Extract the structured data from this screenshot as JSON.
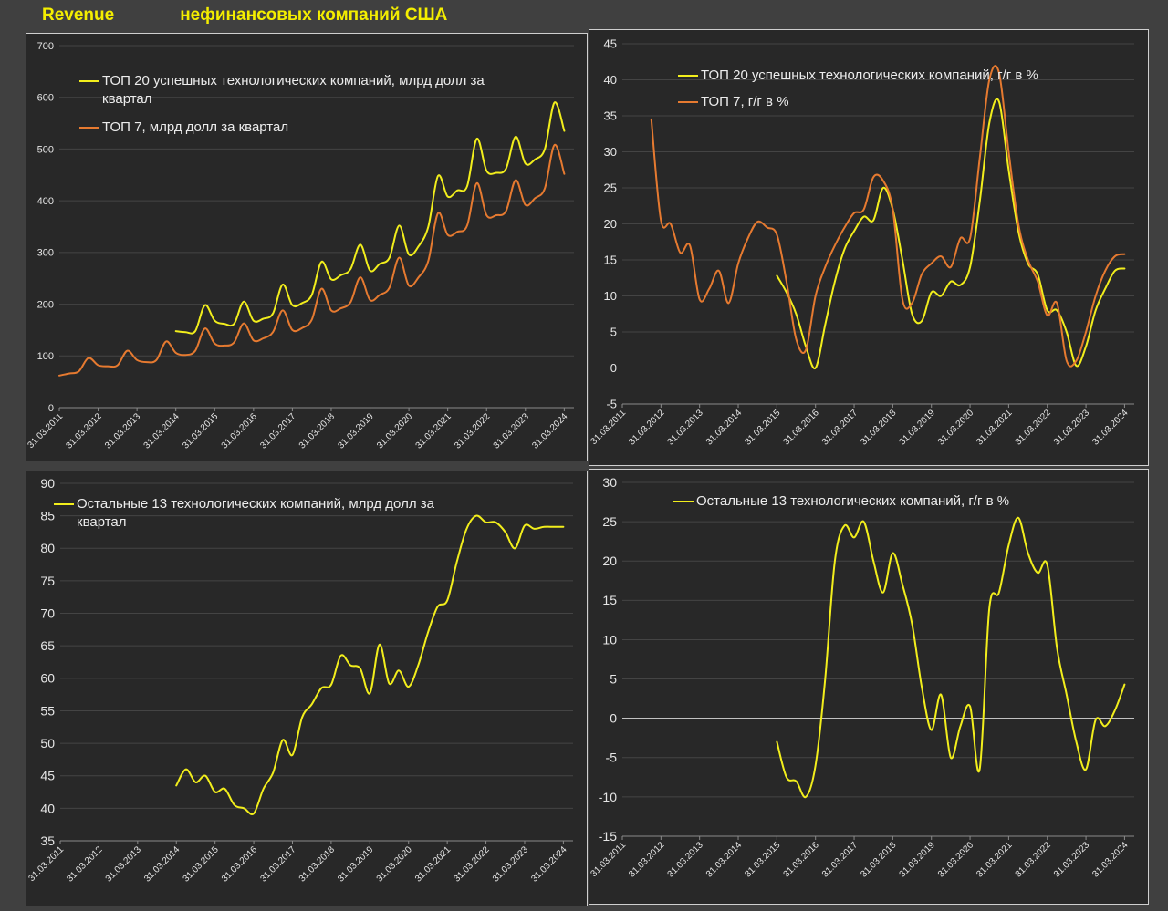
{
  "title": {
    "part1": "Revenue",
    "part2": "нефинансовых компаний США"
  },
  "colors": {
    "yellow": "#f2ee1c",
    "orange": "#e67a30",
    "zero_line": "#d9d9d9",
    "grid": "#444444"
  },
  "chart_data": [
    {
      "id": "top-left",
      "type": "line",
      "title": "",
      "xlabel": "",
      "ylabel": "",
      "ylim": [
        0,
        700
      ],
      "yticks": [
        0,
        100,
        200,
        300,
        400,
        500,
        600,
        700
      ],
      "x_tick_labels": [
        "31.03.2011",
        "31.03.2012",
        "31.03.2013",
        "31.03.2014",
        "31.03.2015",
        "31.03.2016",
        "31.03.2017",
        "31.03.2018",
        "31.03.2019",
        "31.03.2020",
        "31.03.2021",
        "31.03.2022",
        "31.03.2023",
        "31.03.2024"
      ],
      "x_start": 2011.25,
      "x_end": 2024.5,
      "grid": true,
      "legend_position": "top-left",
      "series": [
        {
          "name": "ТОП 20 успешных технологических компаний, млрд долл за квартал",
          "color": "yellow",
          "x": [
            2014.25,
            2014.5,
            2014.75,
            2015,
            2015.25,
            2015.5,
            2015.75,
            2016,
            2016.25,
            2016.5,
            2016.75,
            2017,
            2017.25,
            2017.5,
            2017.75,
            2018,
            2018.25,
            2018.5,
            2018.75,
            2019,
            2019.25,
            2019.5,
            2019.75,
            2020,
            2020.25,
            2020.5,
            2020.75,
            2021,
            2021.25,
            2021.5,
            2021.75,
            2022,
            2022.25,
            2022.5,
            2022.75,
            2023,
            2023.25,
            2023.5,
            2023.75,
            2024,
            2024.25
          ],
          "y": [
            148,
            146,
            148,
            198,
            168,
            162,
            162,
            205,
            168,
            172,
            182,
            238,
            198,
            202,
            218,
            282,
            248,
            256,
            268,
            315,
            265,
            278,
            290,
            352,
            296,
            312,
            350,
            448,
            408,
            420,
            428,
            520,
            458,
            454,
            462,
            524,
            472,
            480,
            500,
            590,
            535
          ]
        },
        {
          "name": "ТОП 7, млрд долл за квартал",
          "color": "orange",
          "x": [
            2011.25,
            2011.5,
            2011.75,
            2012,
            2012.25,
            2012.5,
            2012.75,
            2013,
            2013.25,
            2013.5,
            2013.75,
            2014,
            2014.25,
            2014.5,
            2014.75,
            2015,
            2015.25,
            2015.5,
            2015.75,
            2016,
            2016.25,
            2016.5,
            2016.75,
            2017,
            2017.25,
            2017.5,
            2017.75,
            2018,
            2018.25,
            2018.5,
            2018.75,
            2019,
            2019.25,
            2019.5,
            2019.75,
            2020,
            2020.25,
            2020.5,
            2020.75,
            2021,
            2021.25,
            2021.5,
            2021.75,
            2022,
            2022.25,
            2022.5,
            2022.75,
            2023,
            2023.25,
            2023.5,
            2023.75,
            2024,
            2024.25
          ],
          "y": [
            62,
            66,
            70,
            96,
            82,
            80,
            82,
            110,
            92,
            88,
            92,
            128,
            106,
            102,
            110,
            153,
            124,
            120,
            126,
            163,
            130,
            134,
            146,
            188,
            150,
            154,
            170,
            230,
            188,
            192,
            204,
            252,
            208,
            218,
            232,
            290,
            236,
            252,
            284,
            376,
            334,
            340,
            352,
            434,
            372,
            372,
            380,
            440,
            392,
            405,
            424,
            508,
            452
          ]
        }
      ]
    },
    {
      "id": "top-right",
      "type": "line",
      "title": "",
      "xlabel": "",
      "ylabel": "",
      "ylim": [
        -5,
        45
      ],
      "yticks": [
        -5,
        0,
        5,
        10,
        15,
        20,
        25,
        30,
        35,
        40,
        45
      ],
      "x_tick_labels": [
        "31.03.2011",
        "31.03.2012",
        "31.03.2013",
        "31.03.2014",
        "31.03.2015",
        "31.03.2016",
        "31.03.2017",
        "31.03.2018",
        "31.03.2019",
        "31.03.2020",
        "31.03.2021",
        "31.03.2022",
        "31.03.2023",
        "31.03.2024"
      ],
      "x_start": 2011.25,
      "x_end": 2024.5,
      "grid": true,
      "legend_position": "top-center",
      "series": [
        {
          "name": "ТОП 20 успешных технологических компаний, г/г в %",
          "color": "yellow",
          "x": [
            2015.25,
            2015.5,
            2015.75,
            2016,
            2016.25,
            2016.5,
            2016.75,
            2017,
            2017.25,
            2017.5,
            2017.75,
            2018,
            2018.25,
            2018.5,
            2018.75,
            2019,
            2019.25,
            2019.5,
            2019.75,
            2020,
            2020.25,
            2020.5,
            2020.75,
            2021,
            2021.25,
            2021.5,
            2021.75,
            2022,
            2022.25,
            2022.5,
            2022.75,
            2023,
            2023.25,
            2023.5,
            2023.75,
            2024,
            2024.25
          ],
          "y": [
            12.8,
            10.5,
            7.5,
            3,
            0,
            6,
            12,
            16.5,
            19,
            21,
            20.5,
            25,
            22,
            15,
            7.5,
            6.5,
            10.5,
            10,
            12,
            11.5,
            14,
            23,
            34,
            37,
            27.5,
            19,
            14.5,
            13,
            8,
            8,
            5,
            0.3,
            3,
            8,
            11,
            13.5,
            13.8
          ]
        },
        {
          "name": "ТОП 7, г/г в %",
          "color": "orange",
          "x": [
            2012,
            2012.25,
            2012.5,
            2012.75,
            2013,
            2013.25,
            2013.5,
            2013.75,
            2014,
            2014.25,
            2014.5,
            2014.75,
            2015,
            2015.25,
            2015.5,
            2015.75,
            2016,
            2016.25,
            2016.5,
            2016.75,
            2017,
            2017.25,
            2017.5,
            2017.75,
            2018,
            2018.25,
            2018.5,
            2018.75,
            2019,
            2019.25,
            2019.5,
            2019.75,
            2020,
            2020.25,
            2020.5,
            2020.75,
            2021,
            2021.25,
            2021.5,
            2021.75,
            2022,
            2022.25,
            2022.5,
            2022.75,
            2023,
            2023.25,
            2023.5,
            2023.75,
            2024,
            2024.25
          ],
          "y": [
            34.5,
            20.5,
            20,
            16,
            17,
            9.5,
            11,
            13.5,
            9,
            14.5,
            18,
            20.3,
            19.5,
            18.5,
            12,
            4,
            2.5,
            10,
            14,
            17,
            19.5,
            21.5,
            22,
            26.5,
            26,
            22,
            9.5,
            9,
            13,
            14.5,
            15.5,
            14,
            18,
            18,
            29,
            40,
            41,
            30,
            20,
            15,
            12,
            7.3,
            9,
            1,
            1,
            5,
            10,
            13.5,
            15.5,
            15.8
          ]
        }
      ]
    },
    {
      "id": "bottom-left",
      "type": "line",
      "title": "",
      "xlabel": "",
      "ylabel": "",
      "ylim": [
        35,
        90
      ],
      "yticks": [
        35,
        40,
        45,
        50,
        55,
        60,
        65,
        70,
        75,
        80,
        85,
        90
      ],
      "x_tick_labels": [
        "31.03.2011",
        "31.03.2012",
        "31.03.2013",
        "31.03.2014",
        "31.03.2015",
        "31.03.2016",
        "31.03.2017",
        "31.03.2018",
        "31.03.2019",
        "31.03.2020",
        "31.03.2021",
        "31.03.2022",
        "31.03.2023",
        "31.03.2024"
      ],
      "x_start": 2011.25,
      "x_end": 2024.5,
      "grid": true,
      "legend_position": "top-left",
      "series": [
        {
          "name": "Остальные 13 технологических компаний, млрд долл за квартал",
          "color": "yellow",
          "x": [
            2014.25,
            2014.5,
            2014.75,
            2015,
            2015.25,
            2015.5,
            2015.75,
            2016,
            2016.25,
            2016.5,
            2016.75,
            2017,
            2017.25,
            2017.5,
            2017.75,
            2018,
            2018.25,
            2018.5,
            2018.75,
            2019,
            2019.25,
            2019.5,
            2019.75,
            2020,
            2020.25,
            2020.5,
            2020.75,
            2021,
            2021.25,
            2021.5,
            2021.75,
            2022,
            2022.25,
            2022.5,
            2022.75,
            2023,
            2023.25,
            2023.5,
            2023.75,
            2024,
            2024.25
          ],
          "y": [
            43.5,
            46,
            44,
            45,
            42.5,
            43,
            40.5,
            40,
            39.2,
            43,
            45.5,
            50.5,
            48.2,
            54,
            56,
            58.5,
            59,
            63.5,
            62,
            61.5,
            57.7,
            65.2,
            59.2,
            61.2,
            58.7,
            62,
            67,
            71,
            72,
            78,
            83,
            85,
            84,
            84,
            82.5,
            80,
            83.5,
            83,
            83.3,
            83.3,
            83.3
          ]
        }
      ]
    },
    {
      "id": "bottom-right",
      "type": "line",
      "title": "",
      "xlabel": "",
      "ylabel": "",
      "ylim": [
        -15,
        30
      ],
      "yticks": [
        -15,
        -10,
        -5,
        0,
        5,
        10,
        15,
        20,
        25,
        30
      ],
      "x_tick_labels": [
        "31.03.2011",
        "31.03.2012",
        "31.03.2013",
        "31.03.2014",
        "31.03.2015",
        "31.03.2016",
        "31.03.2017",
        "31.03.2018",
        "31.03.2019",
        "31.03.2020",
        "31.03.2021",
        "31.03.2022",
        "31.03.2023",
        "31.03.2024"
      ],
      "x_start": 2011.25,
      "x_end": 2024.5,
      "grid": true,
      "legend_position": "top-center",
      "series": [
        {
          "name": "Остальные 13 технологических компаний, г/г в %",
          "color": "yellow",
          "x": [
            2015.25,
            2015.5,
            2015.75,
            2016,
            2016.25,
            2016.5,
            2016.75,
            2017,
            2017.25,
            2017.5,
            2017.75,
            2018,
            2018.25,
            2018.5,
            2018.75,
            2019,
            2019.25,
            2019.5,
            2019.75,
            2020,
            2020.25,
            2020.5,
            2020.75,
            2021,
            2021.25,
            2021.5,
            2021.75,
            2022,
            2022.25,
            2022.5,
            2022.75,
            2023,
            2023.25,
            2023.5,
            2023.75,
            2024,
            2024.25
          ],
          "y": [
            -3,
            -7.5,
            -8,
            -10,
            -6,
            5,
            20,
            24.5,
            23,
            25,
            20,
            16,
            21,
            17,
            12,
            4,
            -1.5,
            3,
            -5,
            -1,
            1.5,
            -6.5,
            14,
            16,
            22,
            25.5,
            21,
            18.5,
            19.5,
            9,
            3,
            -3,
            -6.5,
            -0.2,
            -1,
            1,
            4.3
          ]
        }
      ]
    }
  ]
}
